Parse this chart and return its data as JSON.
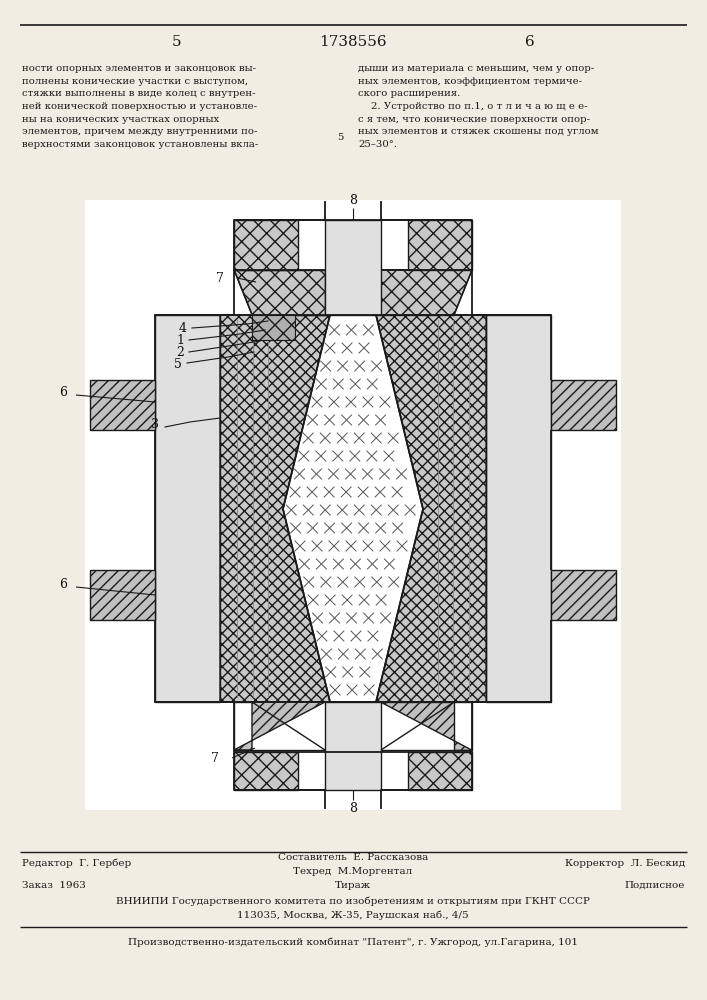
{
  "patent_number": "1738556",
  "page_left": "5",
  "page_right": "6",
  "text_left": "ности опорных элементов и законцовок вы-\nполнены конические участки с выступом,\nстяжки выполнены в виде колец с внутрен-\nней конической поверхностью и установле-\nны на конических участках опорных\nэлементов, причем между внутренними по-\nверхностями законцовок установлены вкла-",
  "text_right": "дыши из материала с меньшим, чем у опор-\nных элементов, коэффициентом термиче-\nского расширения.\n    2. Устройство по п.1, о т л и ч а ю щ е е-\nс я тем, что конические поверхности опор-\nных элементов и стяжек скошены под углом\n25–30°.",
  "center_line_num": "5",
  "footer_ed": "Редактор  Г. Гербер",
  "footer_sost": "Составитель  Е. Рассказова",
  "footer_tech": "Техред  М.Моргентал",
  "footer_corr": "Корректор  Л. Бескид",
  "footer_zak": "Заказ  1963",
  "footer_tir": "Тираж",
  "footer_pod": "Подписное",
  "footer_vni": "ВНИИПИ Государственного комитета по изобретениям и открытиям при ГКНТ СССР",
  "footer_adr": "113035, Москва, Ж-35, Раушская наб., 4/5",
  "footer_pat": "Производственно-издательский комбинат \"Патент\", г. Ужгород, ул.Гагарина, 101",
  "bg": "#f2ede3",
  "ec": "#1a1a1a",
  "fc_xhatch": "#c8c8c8",
  "fc_diag": "#c0c0c0",
  "fc_plain": "#e0e0e0",
  "fc_white": "#ffffff"
}
